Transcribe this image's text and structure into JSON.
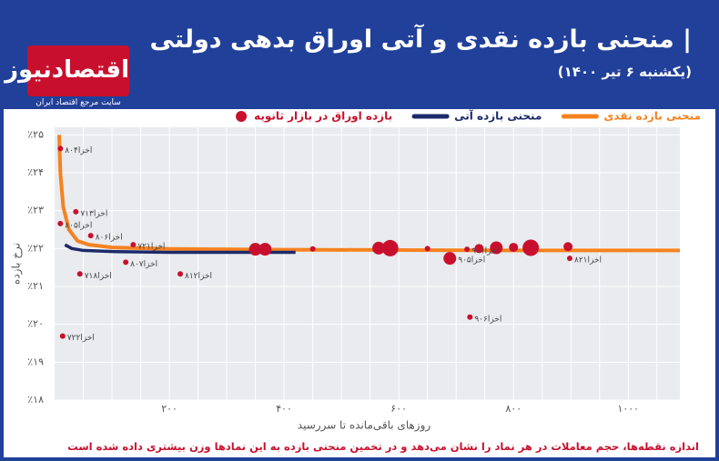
{
  "header": {
    "title": "| منحنی بازده نقدی و آتی اوراق بدهی دولتی",
    "subtitle": "(یکشنبه ۶ تیر ۱۴۰۰)"
  },
  "logo": {
    "name": "اقتصادنیوز",
    "tagline": "سایت مرجع اقتصاد ایران"
  },
  "footnote": "اندازه نقطه‌ها، حجم معاملات در هر نماد را نشان می‌دهد و در تخمین منحنی بازده به این نمادها وزن بیشتری داده شده است",
  "chart_data": {
    "type": "scatter",
    "xlabel": "روزهای باقی‌مانده تا سررسید",
    "ylabel": "نرخ بازده",
    "xlim": [
      0,
      1090
    ],
    "ylim": [
      18,
      25.2
    ],
    "xticks": [
      {
        "value": 200,
        "label": "۲۰۰"
      },
      {
        "value": 400,
        "label": "۴۰۰"
      },
      {
        "value": 600,
        "label": "۶۰۰"
      },
      {
        "value": 800,
        "label": "۸۰۰"
      },
      {
        "value": 1000,
        "label": "۱۰۰۰"
      }
    ],
    "xminor": [
      50,
      100,
      150,
      250,
      300,
      350,
      450,
      500,
      550,
      650,
      700,
      750,
      850,
      900,
      950,
      1050
    ],
    "yticks": [
      {
        "value": 18,
        "label": "٪۱۸"
      },
      {
        "value": 19,
        "label": "٪۱۹"
      },
      {
        "value": 20,
        "label": "٪۲۰"
      },
      {
        "value": 21,
        "label": "٪۲۱"
      },
      {
        "value": 22,
        "label": "٪۲۲"
      },
      {
        "value": 23,
        "label": "٪۲۳"
      },
      {
        "value": 24,
        "label": "٪۲۴"
      },
      {
        "value": 25,
        "label": "٪۲۵"
      }
    ],
    "grid": true,
    "series": [
      {
        "name": "منحنی بازده نقدی",
        "type": "line",
        "color": "#f58220",
        "x": [
          8,
          10,
          15,
          25,
          40,
          60,
          100,
          200,
          400,
          600,
          800,
          1000,
          1090
        ],
        "values": [
          25,
          24,
          23.1,
          22.5,
          22.2,
          22.1,
          22.03,
          21.99,
          21.97,
          21.96,
          21.95,
          21.95,
          21.95
        ]
      },
      {
        "name": "منحنی بازده آتی",
        "type": "line",
        "color": "#1b2a6b",
        "x": [
          18,
          30,
          50,
          100,
          200,
          300,
          420
        ],
        "values": [
          22.1,
          22.0,
          21.95,
          21.92,
          21.9,
          21.9,
          21.9
        ]
      },
      {
        "name": "بازده اوراق در بازار ثانویه",
        "type": "scatter",
        "color": "#c8102e",
        "x": [
          10,
          37,
          10,
          63,
          44,
          124,
          137,
          219,
          14,
          724,
          689,
          898,
          350,
          367,
          565,
          585,
          770,
          740,
          800,
          830,
          895,
          450,
          650,
          719
        ],
        "values": [
          24.64,
          22.97,
          22.66,
          22.34,
          21.33,
          21.64,
          22.1,
          21.33,
          19.69,
          20.19,
          21.74,
          21.74,
          21.98,
          21.98,
          22.01,
          22.01,
          22.02,
          22.0,
          22.03,
          22.02,
          22.05,
          21.99,
          22.0,
          21.98
        ],
        "sizes": [
          1,
          1,
          1,
          1,
          1,
          1,
          1,
          1,
          1,
          1,
          3,
          1,
          3,
          3,
          3,
          4,
          3,
          2,
          2,
          4,
          2,
          1,
          1,
          1
        ],
        "labels": [
          "اخزا۸۰۴",
          "اخزا۷۱۳",
          "اخزا۸۰۵",
          "اخزا۸۰۶",
          "اخزا۷۱۸",
          "اخزا۸۰۷",
          "اخزا۷۲۱",
          "اخزا۸۱۲",
          "اخزا۷۲۲",
          "اخزا۹۰۶",
          "اخزا۹۰۵",
          "اخزا۸۲۱",
          null,
          null,
          null,
          null,
          null,
          null,
          null,
          null,
          null,
          null,
          null,
          "اخزا۹۰۱"
        ]
      }
    ]
  }
}
